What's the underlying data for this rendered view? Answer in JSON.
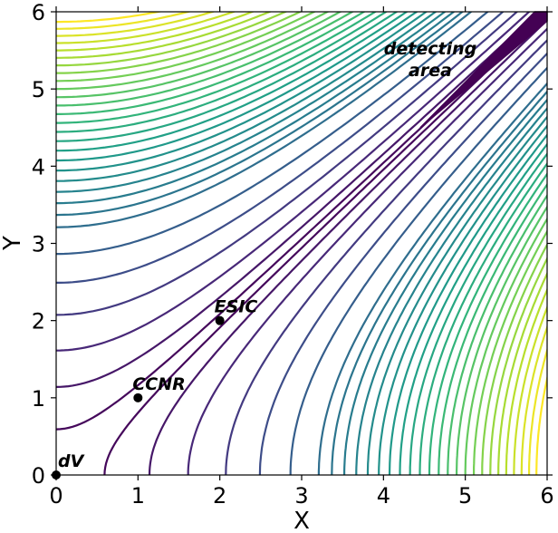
{
  "chart_data": {
    "type": "contour",
    "title": "",
    "xlabel": "X",
    "ylabel": "Y",
    "xlim": [
      0,
      6
    ],
    "ylim": [
      0,
      6
    ],
    "xticks": [
      "0",
      "1",
      "2",
      "3",
      "4",
      "5",
      "6"
    ],
    "yticks": [
      "0",
      "1",
      "2",
      "3",
      "4",
      "5",
      "6"
    ],
    "colormap": "viridis",
    "points": [
      {
        "label": "dV",
        "x": 0,
        "y": 0
      },
      {
        "label": "CCNR",
        "x": 1,
        "y": 1
      },
      {
        "label": "ESIC",
        "x": 2,
        "y": 2
      }
    ],
    "region": {
      "label": "detecting area",
      "label_lines": [
        "detecting",
        "area"
      ],
      "vertices": [
        [
          4.45,
          4.5
        ],
        [
          6.0,
          5.88
        ],
        [
          6.0,
          6.0
        ],
        [
          5.85,
          6.0
        ]
      ],
      "color": "#440154"
    }
  }
}
